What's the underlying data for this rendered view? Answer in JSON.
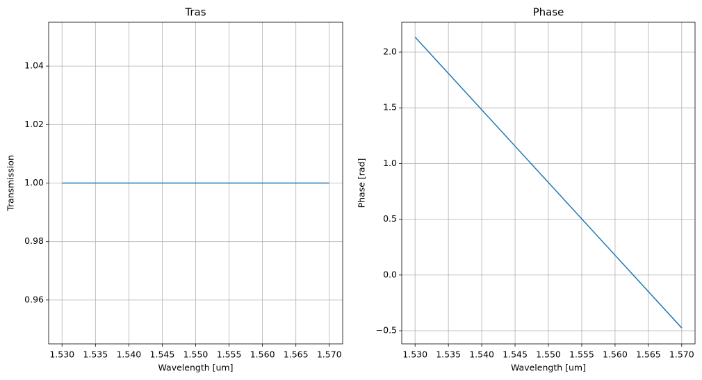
{
  "chart_data": [
    {
      "type": "line",
      "title": "Tras",
      "x_label": "Wavelength [um]",
      "y_label": "Transmission",
      "grid": true,
      "x": [
        1.53,
        1.57
      ],
      "series": [
        {
          "color": "#1f77b4",
          "values": [
            1.0,
            1.0
          ]
        }
      ],
      "xlim": [
        1.528,
        1.572
      ],
      "xticks": [
        {
          "value": 1.53,
          "label": "1.530"
        },
        {
          "value": 1.535,
          "label": "1.535"
        },
        {
          "value": 1.54,
          "label": "1.540"
        },
        {
          "value": 1.545,
          "label": "1.545"
        },
        {
          "value": 1.55,
          "label": "1.550"
        },
        {
          "value": 1.555,
          "label": "1.555"
        },
        {
          "value": 1.56,
          "label": "1.560"
        },
        {
          "value": 1.565,
          "label": "1.565"
        },
        {
          "value": 1.57,
          "label": "1.570"
        }
      ],
      "ylim": [
        0.945,
        1.055
      ],
      "yticks": [
        {
          "value": 0.96,
          "label": "0.96"
        },
        {
          "value": 0.98,
          "label": "0.98"
        },
        {
          "value": 1.0,
          "label": "1.00"
        },
        {
          "value": 1.02,
          "label": "1.02"
        },
        {
          "value": 1.04,
          "label": "1.04"
        }
      ]
    },
    {
      "type": "line",
      "title": "Phase",
      "x_label": "Wavelength [um]",
      "y_label": "Phase [rad]",
      "grid": true,
      "x": [
        1.53,
        1.57
      ],
      "series": [
        {
          "color": "#1f77b4",
          "values": [
            2.135,
            -0.475
          ]
        }
      ],
      "xlim": [
        1.528,
        1.572
      ],
      "xticks": [
        {
          "value": 1.53,
          "label": "1.530"
        },
        {
          "value": 1.535,
          "label": "1.535"
        },
        {
          "value": 1.54,
          "label": "1.540"
        },
        {
          "value": 1.545,
          "label": "1.545"
        },
        {
          "value": 1.55,
          "label": "1.550"
        },
        {
          "value": 1.555,
          "label": "1.555"
        },
        {
          "value": 1.56,
          "label": "1.560"
        },
        {
          "value": 1.565,
          "label": "1.565"
        },
        {
          "value": 1.57,
          "label": "1.570"
        }
      ],
      "ylim": [
        -0.618,
        2.268
      ],
      "yticks": [
        {
          "value": -0.5,
          "label": "−0.5"
        },
        {
          "value": 0.0,
          "label": "0.0"
        },
        {
          "value": 0.5,
          "label": "0.5"
        },
        {
          "value": 1.0,
          "label": "1.0"
        },
        {
          "value": 1.5,
          "label": "1.5"
        },
        {
          "value": 2.0,
          "label": "2.0"
        }
      ]
    }
  ]
}
